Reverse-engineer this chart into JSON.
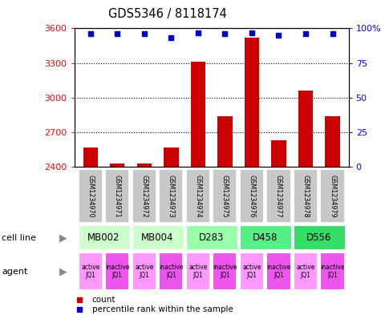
{
  "title": "GDS5346 / 8118174",
  "samples": [
    "GSM1234970",
    "GSM1234971",
    "GSM1234972",
    "GSM1234973",
    "GSM1234974",
    "GSM1234975",
    "GSM1234976",
    "GSM1234977",
    "GSM1234978",
    "GSM1234979"
  ],
  "counts": [
    2570,
    2430,
    2430,
    2570,
    3310,
    2840,
    3520,
    2630,
    3060,
    2840
  ],
  "percentiles": [
    96,
    96,
    96,
    93,
    97,
    96,
    97,
    95,
    96,
    96
  ],
  "cell_lines": [
    {
      "label": "MB002",
      "color": "#ccffcc",
      "start": 0,
      "end": 2
    },
    {
      "label": "MB004",
      "color": "#ccffcc",
      "start": 2,
      "end": 4
    },
    {
      "label": "D283",
      "color": "#99ffaa",
      "start": 4,
      "end": 6
    },
    {
      "label": "D458",
      "color": "#55ee88",
      "start": 6,
      "end": 8
    },
    {
      "label": "D556",
      "color": "#33dd66",
      "start": 8,
      "end": 10
    }
  ],
  "agents": [
    {
      "label": "active\nJQ1",
      "color": "#ff99ff"
    },
    {
      "label": "inactive\nJQ1",
      "color": "#ee55ee"
    },
    {
      "label": "active\nJQ1",
      "color": "#ff99ff"
    },
    {
      "label": "inactive\nJQ1",
      "color": "#ee55ee"
    },
    {
      "label": "active\nJQ1",
      "color": "#ff99ff"
    },
    {
      "label": "inactive\nJQ1",
      "color": "#ee55ee"
    },
    {
      "label": "active\nJQ1",
      "color": "#ff99ff"
    },
    {
      "label": "inactive\nJQ1",
      "color": "#ee55ee"
    },
    {
      "label": "active\nJQ1",
      "color": "#ff99ff"
    },
    {
      "label": "inactive\nJQ1",
      "color": "#ee55ee"
    }
  ],
  "ylim_left": [
    2400,
    3600
  ],
  "yticks_left": [
    2400,
    2700,
    3000,
    3300,
    3600
  ],
  "ylim_right": [
    0,
    100
  ],
  "yticks_right": [
    0,
    25,
    50,
    75,
    100
  ],
  "bar_color": "#cc0000",
  "dot_color": "#0000cc",
  "count_label": "count",
  "percentile_label": "percentile rank within the sample",
  "cell_line_label": "cell line",
  "agent_label": "agent",
  "bar_width": 0.55,
  "sample_box_color": "#c8c8c8"
}
